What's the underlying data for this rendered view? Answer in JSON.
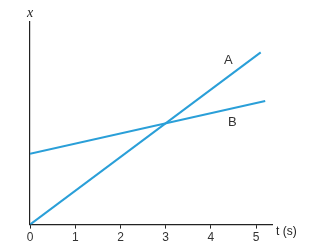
{
  "chart_data": {
    "type": "line",
    "x_label": "t (s)",
    "y_label": "x",
    "series": [
      {
        "name": "A",
        "color": "#2a9fd8",
        "x": [
          0,
          5.1
        ],
        "values": [
          0,
          8.5
        ]
      },
      {
        "name": "B",
        "color": "#2a9fd8",
        "x": [
          0,
          5.2
        ],
        "values": [
          3.5,
          6.1
        ]
      }
    ],
    "xlim": [
      0,
      5.35
    ],
    "xticks": [
      0,
      1,
      2,
      3,
      4,
      5
    ],
    "ylim": [
      0,
      10
    ],
    "grid": false,
    "tick_labels": "x"
  }
}
